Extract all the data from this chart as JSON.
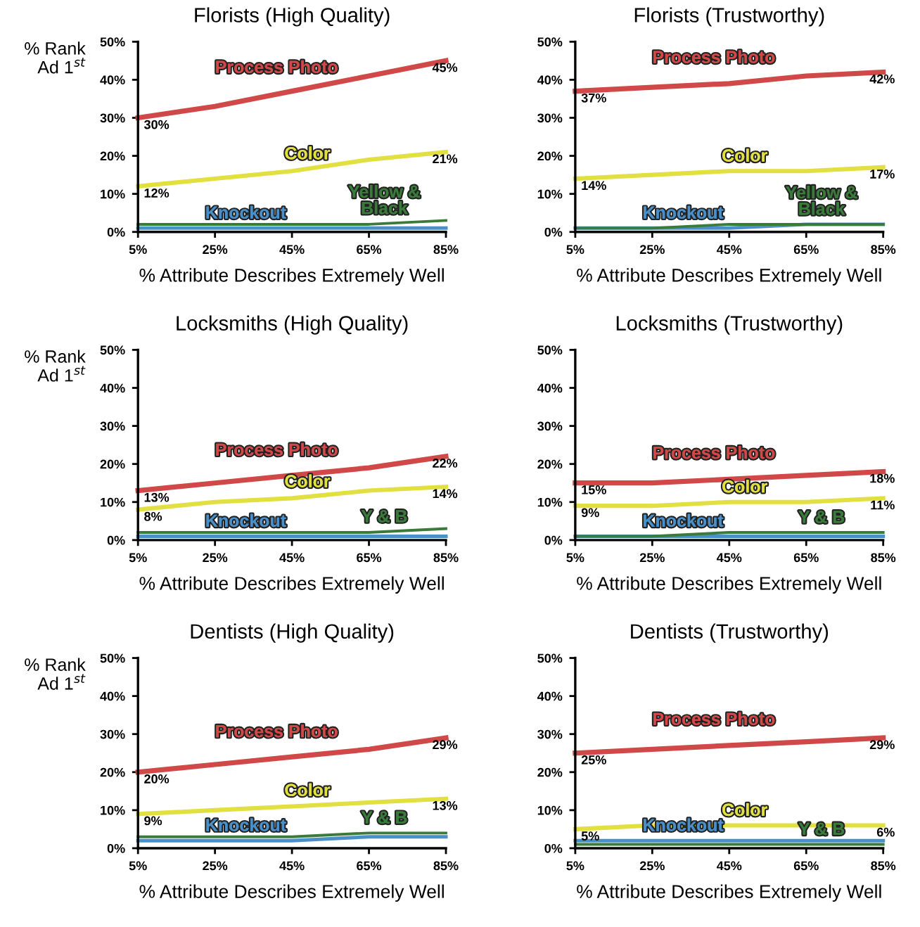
{
  "chart_data": [
    {
      "type": "line",
      "title": "Florists (High Quality)",
      "xlabel": "% Attribute Describes Extremely Well",
      "ylabel": "% Rank\nAd 1$^{st}$",
      "x": [
        5,
        25,
        45,
        65,
        85
      ],
      "xlim": [
        5,
        85
      ],
      "ylim": [
        0,
        50
      ],
      "xticks": [
        {
          "value": 5,
          "label": "5%"
        },
        {
          "value": 25,
          "label": "25%"
        },
        {
          "value": 45,
          "label": "45%"
        },
        {
          "value": 65,
          "label": "65%"
        },
        {
          "value": 85,
          "label": "85%"
        }
      ],
      "yticks": [
        {
          "value": 0,
          "label": "0%"
        },
        {
          "value": 10,
          "label": "10%"
        },
        {
          "value": 20,
          "label": "20%"
        },
        {
          "value": 30,
          "label": "30%"
        },
        {
          "value": 40,
          "label": "40%"
        },
        {
          "value": 50,
          "label": "50%"
        }
      ],
      "series": [
        {
          "name": "Process Photo",
          "color": "#d04848",
          "values": [
            30,
            33,
            37,
            41,
            45
          ],
          "value_labels": [
            "30%",
            null,
            null,
            null,
            "45%"
          ]
        },
        {
          "name": "Color",
          "color": "#e2e040",
          "values": [
            12,
            14,
            16,
            19,
            21
          ],
          "value_labels": [
            "12%",
            null,
            null,
            null,
            "21%"
          ]
        },
        {
          "name": "Knockout",
          "color": "#4a8fc8",
          "values": [
            1,
            1,
            1,
            1,
            1
          ]
        },
        {
          "name": "Yellow &\nBlack",
          "color": "#3a7a3a",
          "values": [
            2,
            2,
            2,
            2,
            3
          ]
        }
      ]
    },
    {
      "type": "line",
      "title": "Florists (Trustworthy)",
      "xlabel": "% Attribute Describes Extremely Well",
      "x": [
        5,
        25,
        45,
        65,
        85
      ],
      "xlim": [
        5,
        85
      ],
      "ylim": [
        0,
        50
      ],
      "xticks": [
        {
          "value": 5,
          "label": "5%"
        },
        {
          "value": 25,
          "label": "25%"
        },
        {
          "value": 45,
          "label": "45%"
        },
        {
          "value": 65,
          "label": "65%"
        },
        {
          "value": 85,
          "label": "85%"
        }
      ],
      "yticks": [
        {
          "value": 0,
          "label": "0%"
        },
        {
          "value": 10,
          "label": "10%"
        },
        {
          "value": 20,
          "label": "20%"
        },
        {
          "value": 30,
          "label": "30%"
        },
        {
          "value": 40,
          "label": "40%"
        },
        {
          "value": 50,
          "label": "50%"
        }
      ],
      "series": [
        {
          "name": "Process Photo",
          "color": "#d04848",
          "values": [
            37,
            38,
            39,
            41,
            42
          ],
          "value_labels": [
            "37%",
            null,
            null,
            null,
            "42%"
          ]
        },
        {
          "name": "Color",
          "color": "#e2e040",
          "values": [
            14,
            15,
            16,
            16,
            17
          ],
          "value_labels": [
            "14%",
            null,
            null,
            null,
            "17%"
          ]
        },
        {
          "name": "Knockout",
          "color": "#4a8fc8",
          "values": [
            1,
            1,
            1,
            2,
            2
          ]
        },
        {
          "name": "Yellow &\nBlack",
          "color": "#3a7a3a",
          "values": [
            1,
            1,
            2,
            2,
            2
          ]
        }
      ]
    },
    {
      "type": "line",
      "title": "Locksmiths (High Quality)",
      "xlabel": "% Attribute Describes Extremely Well",
      "ylabel": "% Rank\nAd 1$^{st}$",
      "x": [
        5,
        25,
        45,
        65,
        85
      ],
      "xlim": [
        5,
        85
      ],
      "ylim": [
        0,
        50
      ],
      "xticks": [
        {
          "value": 5,
          "label": "5%"
        },
        {
          "value": 25,
          "label": "25%"
        },
        {
          "value": 45,
          "label": "45%"
        },
        {
          "value": 65,
          "label": "65%"
        },
        {
          "value": 85,
          "label": "85%"
        }
      ],
      "yticks": [
        {
          "value": 0,
          "label": "0%"
        },
        {
          "value": 10,
          "label": "10%"
        },
        {
          "value": 20,
          "label": "20%"
        },
        {
          "value": 30,
          "label": "30%"
        },
        {
          "value": 40,
          "label": "40%"
        },
        {
          "value": 50,
          "label": "50%"
        }
      ],
      "series": [
        {
          "name": "Process Photo",
          "color": "#d04848",
          "values": [
            13,
            15,
            17,
            19,
            22
          ],
          "value_labels": [
            "13%",
            null,
            null,
            null,
            "22%"
          ]
        },
        {
          "name": "Color",
          "color": "#e2e040",
          "values": [
            8,
            10,
            11,
            13,
            14
          ],
          "value_labels": [
            "8%",
            null,
            null,
            null,
            "14%"
          ]
        },
        {
          "name": "Knockout",
          "color": "#4a8fc8",
          "values": [
            1,
            1,
            1,
            1,
            1
          ]
        },
        {
          "name": "Y & B",
          "color": "#3a7a3a",
          "values": [
            2,
            2,
            2,
            2,
            3
          ]
        }
      ]
    },
    {
      "type": "line",
      "title": "Locksmiths (Trustworthy)",
      "xlabel": "% Attribute Describes Extremely Well",
      "x": [
        5,
        25,
        45,
        65,
        85
      ],
      "xlim": [
        5,
        85
      ],
      "ylim": [
        0,
        50
      ],
      "xticks": [
        {
          "value": 5,
          "label": "5%"
        },
        {
          "value": 25,
          "label": "25%"
        },
        {
          "value": 45,
          "label": "45%"
        },
        {
          "value": 65,
          "label": "65%"
        },
        {
          "value": 85,
          "label": "85%"
        }
      ],
      "yticks": [
        {
          "value": 0,
          "label": "0%"
        },
        {
          "value": 10,
          "label": "10%"
        },
        {
          "value": 20,
          "label": "20%"
        },
        {
          "value": 30,
          "label": "30%"
        },
        {
          "value": 40,
          "label": "40%"
        },
        {
          "value": 50,
          "label": "50%"
        }
      ],
      "series": [
        {
          "name": "Process Photo",
          "color": "#d04848",
          "values": [
            15,
            15,
            16,
            17,
            18
          ],
          "value_labels": [
            "15%",
            null,
            null,
            null,
            "18%"
          ]
        },
        {
          "name": "Color",
          "color": "#e2e040",
          "values": [
            9,
            9,
            10,
            10,
            11
          ],
          "value_labels": [
            "9%",
            null,
            null,
            null,
            "11%"
          ]
        },
        {
          "name": "Knockout",
          "color": "#4a8fc8",
          "values": [
            1,
            1,
            1,
            1,
            1
          ]
        },
        {
          "name": "Y & B",
          "color": "#3a7a3a",
          "values": [
            1,
            1,
            2,
            2,
            2
          ]
        }
      ]
    },
    {
      "type": "line",
      "title": "Dentists (High Quality)",
      "xlabel": "% Attribute Describes Extremely Well",
      "ylabel": "% Rank\nAd 1$^{st}$",
      "x": [
        5,
        25,
        45,
        65,
        85
      ],
      "xlim": [
        5,
        85
      ],
      "ylim": [
        0,
        50
      ],
      "xticks": [
        {
          "value": 5,
          "label": "5%"
        },
        {
          "value": 25,
          "label": "25%"
        },
        {
          "value": 45,
          "label": "45%"
        },
        {
          "value": 65,
          "label": "65%"
        },
        {
          "value": 85,
          "label": "85%"
        }
      ],
      "yticks": [
        {
          "value": 0,
          "label": "0%"
        },
        {
          "value": 10,
          "label": "10%"
        },
        {
          "value": 20,
          "label": "20%"
        },
        {
          "value": 30,
          "label": "30%"
        },
        {
          "value": 40,
          "label": "40%"
        },
        {
          "value": 50,
          "label": "50%"
        }
      ],
      "series": [
        {
          "name": "Process Photo",
          "color": "#d04848",
          "values": [
            20,
            22,
            24,
            26,
            29
          ],
          "value_labels": [
            "20%",
            null,
            null,
            null,
            "29%"
          ]
        },
        {
          "name": "Color",
          "color": "#e2e040",
          "values": [
            9,
            10,
            11,
            12,
            13
          ],
          "value_labels": [
            "9%",
            null,
            null,
            null,
            "13%"
          ]
        },
        {
          "name": "Knockout",
          "color": "#4a8fc8",
          "values": [
            2,
            2,
            2,
            3,
            3
          ]
        },
        {
          "name": "Y & B",
          "color": "#3a7a3a",
          "values": [
            3,
            3,
            3,
            4,
            4
          ]
        }
      ]
    },
    {
      "type": "line",
      "title": "Dentists (Trustworthy)",
      "xlabel": "% Attribute Describes Extremely Well",
      "x": [
        5,
        25,
        45,
        65,
        85
      ],
      "xlim": [
        5,
        85
      ],
      "ylim": [
        0,
        50
      ],
      "xticks": [
        {
          "value": 5,
          "label": "5%"
        },
        {
          "value": 25,
          "label": "25%"
        },
        {
          "value": 45,
          "label": "45%"
        },
        {
          "value": 65,
          "label": "65%"
        },
        {
          "value": 85,
          "label": "85%"
        }
      ],
      "yticks": [
        {
          "value": 0,
          "label": "0%"
        },
        {
          "value": 10,
          "label": "10%"
        },
        {
          "value": 20,
          "label": "20%"
        },
        {
          "value": 30,
          "label": "30%"
        },
        {
          "value": 40,
          "label": "40%"
        },
        {
          "value": 50,
          "label": "50%"
        }
      ],
      "series": [
        {
          "name": "Process Photo",
          "color": "#d04848",
          "values": [
            25,
            26,
            27,
            28,
            29
          ],
          "value_labels": [
            "25%",
            null,
            null,
            null,
            "29%"
          ]
        },
        {
          "name": "Color",
          "color": "#e2e040",
          "values": [
            5,
            6,
            6,
            6,
            6
          ],
          "value_labels": [
            "5%",
            null,
            null,
            null,
            "6%"
          ]
        },
        {
          "name": "Knockout",
          "color": "#4a8fc8",
          "values": [
            2,
            2,
            2,
            2,
            2
          ]
        },
        {
          "name": "Y & B",
          "color": "#3a7a3a",
          "values": [
            1,
            1,
            1,
            1,
            1
          ]
        }
      ]
    }
  ]
}
